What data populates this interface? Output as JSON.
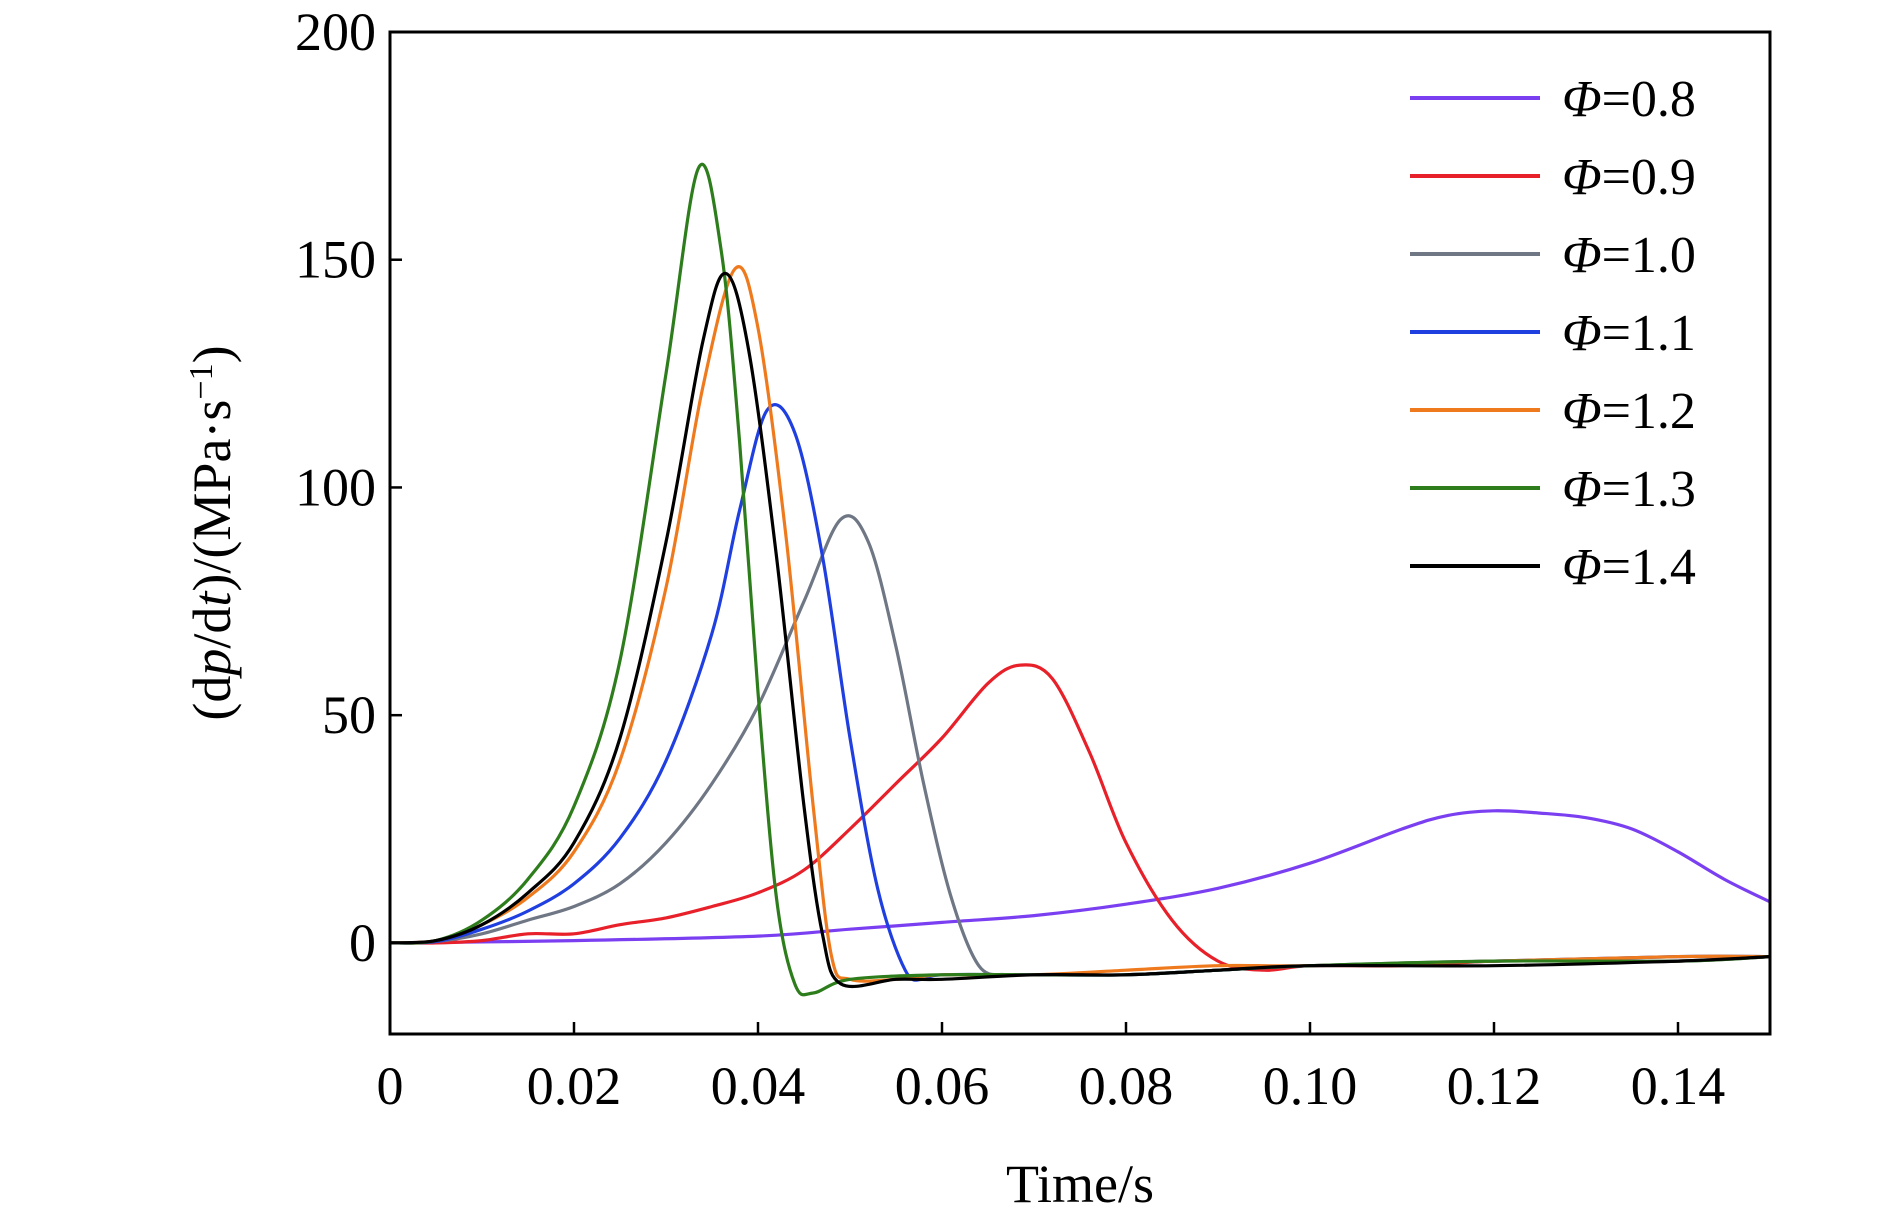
{
  "chart_data": {
    "type": "line",
    "title": "",
    "xlabel": "Time/s",
    "ylabel": {
      "prefix": "(d",
      "p": "p",
      "mid": "/d",
      "t": "t",
      "suffix": ")/(MPa·s",
      "sup": "−1",
      "close": ")"
    },
    "xlim": [
      0,
      0.15
    ],
    "ylim": [
      -20,
      200
    ],
    "xticks": [
      0,
      0.02,
      0.04,
      0.06,
      0.08,
      0.1,
      0.12,
      0.14
    ],
    "xtick_labels": [
      "0",
      "0.02",
      "0.04",
      "0.06",
      "0.08",
      "0.10",
      "0.12",
      "0.14"
    ],
    "yticks": [
      0,
      50,
      100,
      150,
      200
    ],
    "ytick_labels": [
      "0",
      "50",
      "100",
      "150",
      "200"
    ],
    "grid": false,
    "legend_position": "top-right",
    "legend_symbol": "Φ",
    "series": [
      {
        "name": "=0.8",
        "color": "#7b3ff2",
        "points": [
          [
            0,
            0
          ],
          [
            0.02,
            0.5
          ],
          [
            0.04,
            1.5
          ],
          [
            0.05,
            3
          ],
          [
            0.06,
            4.5
          ],
          [
            0.07,
            6
          ],
          [
            0.08,
            8.5
          ],
          [
            0.09,
            12
          ],
          [
            0.1,
            17.5
          ],
          [
            0.11,
            25
          ],
          [
            0.115,
            28
          ],
          [
            0.12,
            29
          ],
          [
            0.125,
            28.5
          ],
          [
            0.13,
            27.5
          ],
          [
            0.135,
            25
          ],
          [
            0.14,
            20
          ],
          [
            0.145,
            14
          ],
          [
            0.15,
            9
          ]
        ]
      },
      {
        "name": "=0.9",
        "color": "#e8202a",
        "points": [
          [
            0,
            0
          ],
          [
            0.005,
            0
          ],
          [
            0.01,
            0.5
          ],
          [
            0.015,
            2
          ],
          [
            0.02,
            2
          ],
          [
            0.025,
            4
          ],
          [
            0.03,
            5.5
          ],
          [
            0.035,
            8
          ],
          [
            0.04,
            11
          ],
          [
            0.045,
            16
          ],
          [
            0.05,
            25
          ],
          [
            0.055,
            35
          ],
          [
            0.06,
            45
          ],
          [
            0.065,
            57
          ],
          [
            0.0685,
            61
          ],
          [
            0.072,
            58
          ],
          [
            0.076,
            42
          ],
          [
            0.08,
            22
          ],
          [
            0.085,
            5
          ],
          [
            0.09,
            -4
          ],
          [
            0.095,
            -6
          ],
          [
            0.1,
            -5
          ],
          [
            0.11,
            -5
          ],
          [
            0.12,
            -4
          ],
          [
            0.13,
            -4
          ],
          [
            0.14,
            -4
          ],
          [
            0.15,
            -3
          ]
        ]
      },
      {
        "name": "=1.0",
        "color": "#6f7785",
        "points": [
          [
            0,
            0
          ],
          [
            0.005,
            0.3
          ],
          [
            0.01,
            2
          ],
          [
            0.015,
            5
          ],
          [
            0.02,
            8
          ],
          [
            0.025,
            13
          ],
          [
            0.03,
            22
          ],
          [
            0.035,
            35
          ],
          [
            0.04,
            52
          ],
          [
            0.045,
            75
          ],
          [
            0.049,
            93
          ],
          [
            0.052,
            88
          ],
          [
            0.055,
            65
          ],
          [
            0.058,
            35
          ],
          [
            0.061,
            10
          ],
          [
            0.064,
            -5
          ],
          [
            0.067,
            -7
          ],
          [
            0.07,
            -7
          ],
          [
            0.08,
            -7
          ],
          [
            0.09,
            -6
          ],
          [
            0.1,
            -5
          ],
          [
            0.12,
            -4
          ],
          [
            0.14,
            -4
          ],
          [
            0.15,
            -3
          ]
        ]
      },
      {
        "name": "=1.1",
        "color": "#1f3fe0",
        "points": [
          [
            0,
            0
          ],
          [
            0.005,
            0.3
          ],
          [
            0.01,
            3
          ],
          [
            0.015,
            7
          ],
          [
            0.02,
            13
          ],
          [
            0.025,
            23
          ],
          [
            0.03,
            40
          ],
          [
            0.035,
            68
          ],
          [
            0.038,
            95
          ],
          [
            0.041,
            117
          ],
          [
            0.044,
            112
          ],
          [
            0.047,
            85
          ],
          [
            0.05,
            45
          ],
          [
            0.053,
            12
          ],
          [
            0.056,
            -6
          ],
          [
            0.058,
            -8
          ],
          [
            0.06,
            -7
          ],
          [
            0.07,
            -7
          ],
          [
            0.08,
            -7
          ],
          [
            0.09,
            -6
          ],
          [
            0.1,
            -5
          ],
          [
            0.12,
            -4
          ],
          [
            0.14,
            -3
          ],
          [
            0.15,
            -3
          ]
        ]
      },
      {
        "name": "=1.2",
        "color": "#ef7a1e",
        "points": [
          [
            0,
            0
          ],
          [
            0.005,
            0.5
          ],
          [
            0.01,
            4
          ],
          [
            0.015,
            10
          ],
          [
            0.02,
            20
          ],
          [
            0.025,
            40
          ],
          [
            0.03,
            78
          ],
          [
            0.034,
            122
          ],
          [
            0.0375,
            148
          ],
          [
            0.04,
            135
          ],
          [
            0.043,
            90
          ],
          [
            0.046,
            30
          ],
          [
            0.048,
            -3
          ],
          [
            0.05,
            -8
          ],
          [
            0.055,
            -8
          ],
          [
            0.06,
            -7
          ],
          [
            0.07,
            -7
          ],
          [
            0.08,
            -6
          ],
          [
            0.09,
            -5
          ],
          [
            0.1,
            -5
          ],
          [
            0.12,
            -4
          ],
          [
            0.14,
            -3
          ],
          [
            0.15,
            -3
          ]
        ]
      },
      {
        "name": "=1.3",
        "color": "#2e7d1c",
        "points": [
          [
            0,
            0
          ],
          [
            0.005,
            0.5
          ],
          [
            0.01,
            5
          ],
          [
            0.015,
            14
          ],
          [
            0.02,
            30
          ],
          [
            0.025,
            62
          ],
          [
            0.03,
            125
          ],
          [
            0.0335,
            170
          ],
          [
            0.036,
            152
          ],
          [
            0.038,
            110
          ],
          [
            0.04,
            55
          ],
          [
            0.042,
            10
          ],
          [
            0.044,
            -9
          ],
          [
            0.046,
            -11
          ],
          [
            0.05,
            -8
          ],
          [
            0.06,
            -7
          ],
          [
            0.07,
            -7
          ],
          [
            0.08,
            -7
          ],
          [
            0.09,
            -6
          ],
          [
            0.1,
            -5
          ],
          [
            0.12,
            -4
          ],
          [
            0.14,
            -4
          ],
          [
            0.15,
            -3
          ]
        ]
      },
      {
        "name": "=1.4",
        "color": "#000000",
        "points": [
          [
            0,
            0
          ],
          [
            0.005,
            0.5
          ],
          [
            0.01,
            4
          ],
          [
            0.015,
            11
          ],
          [
            0.02,
            22
          ],
          [
            0.025,
            45
          ],
          [
            0.03,
            88
          ],
          [
            0.034,
            132
          ],
          [
            0.0365,
            147
          ],
          [
            0.039,
            130
          ],
          [
            0.042,
            85
          ],
          [
            0.045,
            30
          ],
          [
            0.047,
            2
          ],
          [
            0.049,
            -9
          ],
          [
            0.055,
            -8
          ],
          [
            0.06,
            -8
          ],
          [
            0.07,
            -7
          ],
          [
            0.08,
            -7
          ],
          [
            0.09,
            -6
          ],
          [
            0.1,
            -5
          ],
          [
            0.12,
            -5
          ],
          [
            0.14,
            -4
          ],
          [
            0.15,
            -3
          ]
        ]
      }
    ]
  }
}
